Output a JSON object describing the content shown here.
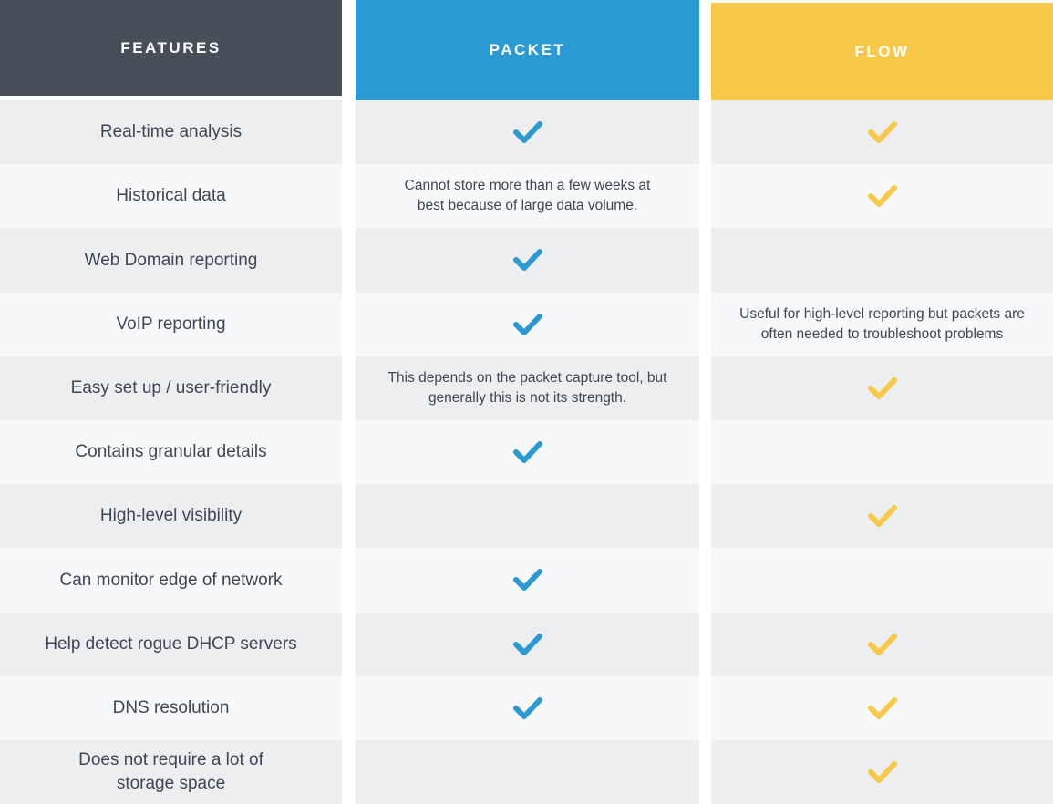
{
  "table": {
    "columns": [
      {
        "key": "features",
        "label": "FEATURES",
        "header_bg": "#474f59"
      },
      {
        "key": "packet",
        "label": "PACKET",
        "header_bg": "#2c9ad2"
      },
      {
        "key": "flow",
        "label": "FLOW",
        "header_bg": "#f8c948"
      }
    ],
    "check_colors": {
      "packet": "#2c9ad2",
      "flow": "#f8c948"
    },
    "row_colors": {
      "odd": "#eceef0",
      "even": "#f7f8f9"
    },
    "text_color": "#3e4854",
    "rows": [
      {
        "feature": "Real-time analysis",
        "packet": {
          "type": "check"
        },
        "flow": {
          "type": "check"
        }
      },
      {
        "feature": "Historical data",
        "packet": {
          "type": "text",
          "text": "Cannot store more than a few weeks at best because of large data volume."
        },
        "flow": {
          "type": "check"
        }
      },
      {
        "feature": "Web Domain reporting",
        "packet": {
          "type": "check"
        },
        "flow": {
          "type": "empty"
        }
      },
      {
        "feature": "VoIP reporting",
        "packet": {
          "type": "check"
        },
        "flow": {
          "type": "text",
          "text": "Useful for high-level reporting but packets are often needed to troubleshoot problems"
        }
      },
      {
        "feature": "Easy set up / user-friendly",
        "packet": {
          "type": "text",
          "text": "This depends on the packet capture tool, but generally this is not its strength."
        },
        "flow": {
          "type": "check"
        }
      },
      {
        "feature": "Contains granular details",
        "packet": {
          "type": "check"
        },
        "flow": {
          "type": "empty"
        }
      },
      {
        "feature": "High-level visibility",
        "packet": {
          "type": "empty"
        },
        "flow": {
          "type": "check"
        }
      },
      {
        "feature": "Can monitor edge of network",
        "packet": {
          "type": "check"
        },
        "flow": {
          "type": "empty"
        }
      },
      {
        "feature": "Help detect rogue DHCP servers",
        "packet": {
          "type": "check"
        },
        "flow": {
          "type": "check"
        }
      },
      {
        "feature": "DNS resolution",
        "packet": {
          "type": "check"
        },
        "flow": {
          "type": "check"
        }
      },
      {
        "feature": "Does not require a lot of storage space",
        "packet": {
          "type": "empty"
        },
        "flow": {
          "type": "check"
        }
      }
    ]
  },
  "chart_data": {
    "type": "table",
    "columns": [
      "FEATURES",
      "PACKET",
      "FLOW"
    ],
    "rows": [
      [
        "Real-time analysis",
        "check",
        "check"
      ],
      [
        "Historical data",
        "Cannot store more than a few weeks at best because of large data volume.",
        "check"
      ],
      [
        "Web Domain reporting",
        "check",
        ""
      ],
      [
        "VoIP reporting",
        "check",
        "Useful for high-level reporting but packets are often needed to troubleshoot problems"
      ],
      [
        "Easy set up / user-friendly",
        "This depends on the packet capture tool, but generally this is not its strength.",
        "check"
      ],
      [
        "Contains granular details",
        "check",
        ""
      ],
      [
        "High-level visibility",
        "",
        "check"
      ],
      [
        "Can monitor edge of network",
        "check",
        ""
      ],
      [
        "Help detect rogue DHCP servers",
        "check",
        "check"
      ],
      [
        "DNS resolution",
        "check",
        "check"
      ],
      [
        "Does not require a lot of storage space",
        "",
        "check"
      ]
    ],
    "legend": "cells contain a checkmark, explanatory note text, or are empty",
    "accent_colors": {
      "packet_check": "#2c9ad2",
      "flow_check": "#f8c948"
    }
  }
}
